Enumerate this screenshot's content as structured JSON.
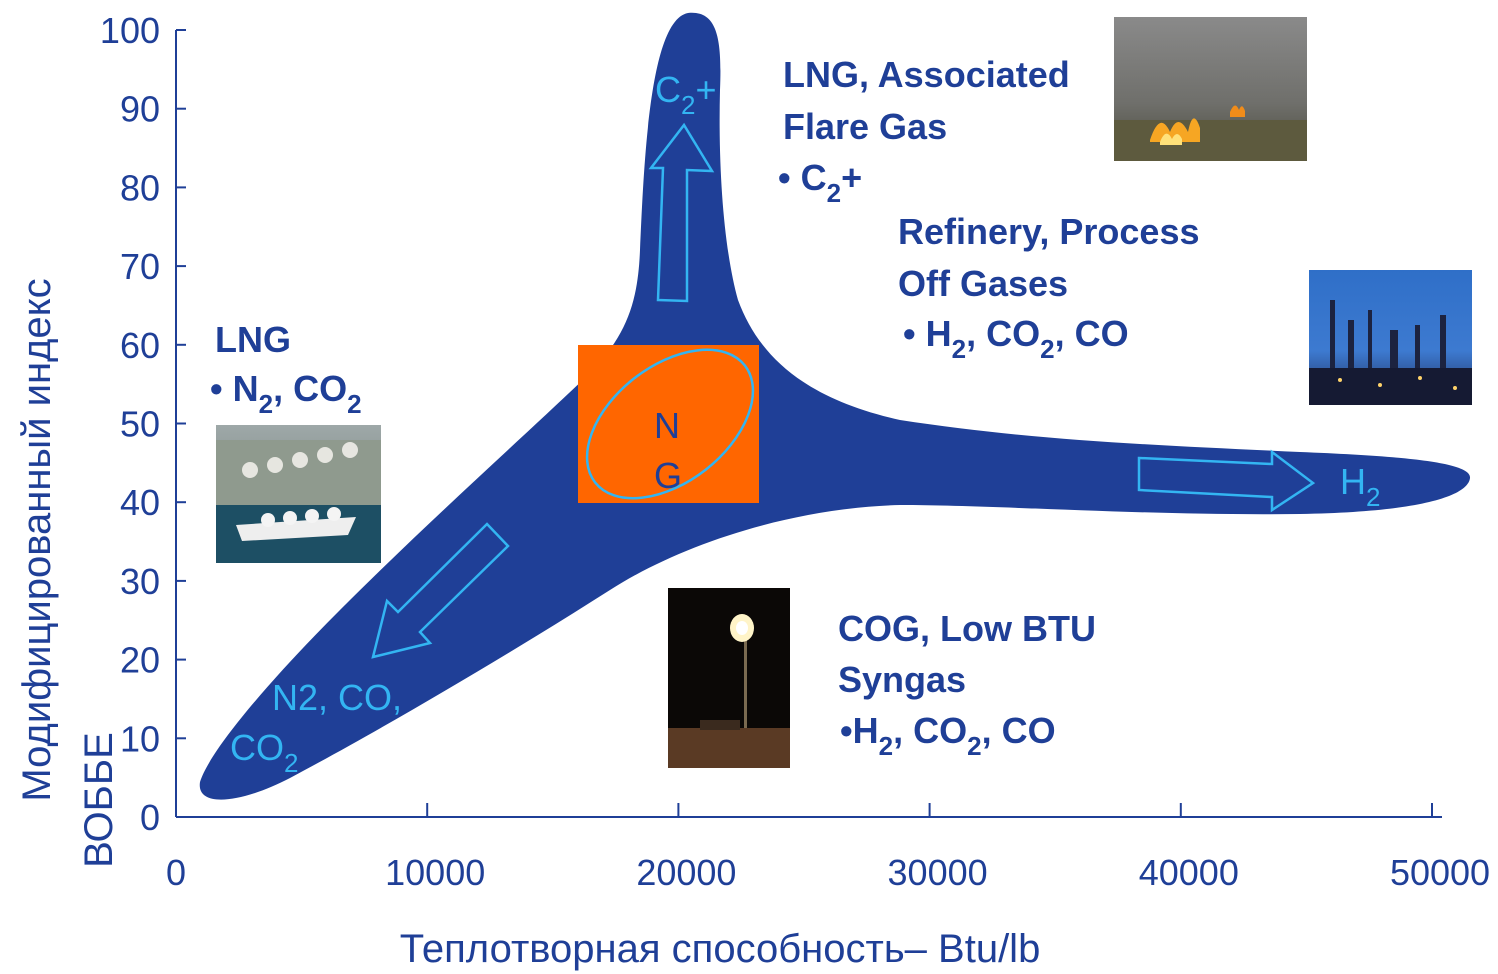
{
  "chart_data": {
    "type": "diagram-on-axes",
    "xlabel": "Теплотворная способность– Btu/lb",
    "ylabel_line1": "Модифицированный индекс",
    "ylabel_line2": "ВОББЕ",
    "xlim": [
      0,
      50000
    ],
    "ylim": [
      0,
      100
    ],
    "x_ticks": [
      0,
      10000,
      20000,
      30000,
      40000,
      50000
    ],
    "y_ticks": [
      0,
      10,
      20,
      30,
      40,
      50,
      60,
      70,
      80,
      90,
      100
    ],
    "center_label": [
      "N",
      "G"
    ],
    "directions": [
      {
        "label_main": "C",
        "label_sub": "2",
        "label_after": "+"
      },
      {
        "label_main": "H",
        "label_sub": "2",
        "label_after": ""
      },
      {
        "label_line1": "N2, CO,",
        "label_line2_main": "CO",
        "label_line2_sub": "2"
      }
    ],
    "annotations": {
      "lng_flare": {
        "line1": "LNG, Associated",
        "line2": "Flare Gas",
        "bullet": "• C",
        "bullet_sub": "2",
        "bullet_after": "+"
      },
      "refinery": {
        "line1": "Refinery, Process",
        "line2": "Off Gases",
        "bullet": "• H",
        "sub1": "2",
        "mid1": ", CO",
        "sub2": "2",
        "after": ", CO"
      },
      "lng": {
        "line1": "LNG",
        "bullet": "• N",
        "sub1": "2",
        "mid1": ", CO",
        "sub2": "2"
      },
      "cog": {
        "line1": "COG, Low BTU",
        "line2": "Syngas",
        "bullet": "•H",
        "sub1": "2",
        "mid1": ", CO",
        "sub2": "2",
        "after": ", CO"
      }
    },
    "grid": false,
    "legend": "none"
  },
  "colors": {
    "shape": "#1f3f97",
    "center_box": "#ff6600",
    "arrow": "#33b5f2",
    "text": "#1f3f97"
  },
  "photos": [
    "flare-fire-photo",
    "refinery-photo",
    "lng-terminal-photo",
    "night-flare-photo"
  ]
}
